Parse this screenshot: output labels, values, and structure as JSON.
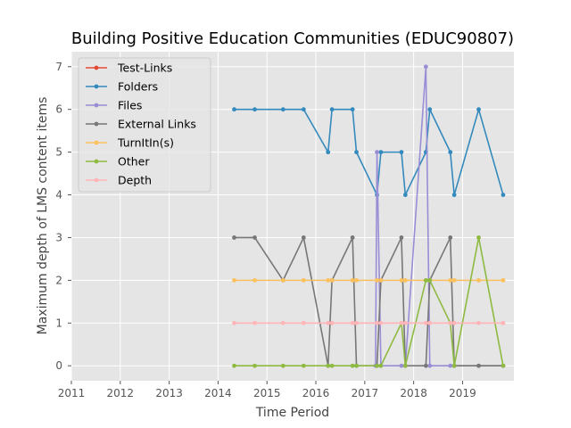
{
  "chart_data": {
    "type": "line",
    "title": "Building Positive Education Communities (EDUC90807)",
    "xlabel": "Time Period",
    "ylabel": "Maximum depth of LMS content items",
    "xlim": [
      2011.0,
      2020.05
    ],
    "ylim": [
      -0.35,
      7.35
    ],
    "xticks": [
      "2011",
      "2012",
      "2013",
      "2014",
      "2015",
      "2016",
      "2017",
      "2018",
      "2019"
    ],
    "yticks": [
      "0",
      "1",
      "2",
      "3",
      "4",
      "5",
      "6",
      "7"
    ],
    "grid": true,
    "legend_position": "upper-left",
    "series": [
      {
        "name": "Test-Links",
        "color": "#e24a33",
        "points": []
      },
      {
        "name": "Folders",
        "color": "#348abd",
        "points": [
          [
            2014.33,
            6
          ],
          [
            2014.75,
            6
          ],
          [
            2015.33,
            6
          ],
          [
            2015.75,
            6
          ],
          [
            2016.25,
            5
          ],
          [
            2016.33,
            6
          ],
          [
            2016.75,
            6
          ],
          [
            2016.83,
            5
          ],
          [
            2017.25,
            4
          ],
          [
            2017.33,
            5
          ],
          [
            2017.75,
            5
          ],
          [
            2017.83,
            4
          ],
          [
            2018.25,
            5
          ],
          [
            2018.33,
            6
          ],
          [
            2018.75,
            5
          ],
          [
            2018.83,
            4
          ],
          [
            2019.33,
            6
          ],
          [
            2019.83,
            4
          ]
        ]
      },
      {
        "name": "Files",
        "color": "#988ed5",
        "points": [
          [
            2017.22,
            0
          ],
          [
            2017.25,
            5
          ],
          [
            2017.33,
            0
          ],
          [
            2017.75,
            0
          ],
          [
            2017.83,
            0
          ],
          [
            2018.25,
            7
          ],
          [
            2018.33,
            0
          ],
          [
            2018.75,
            0
          ],
          [
            2018.83,
            0
          ],
          [
            2019.33,
            0
          ],
          [
            2019.83,
            0
          ]
        ]
      },
      {
        "name": "External Links",
        "color": "#777777",
        "points": [
          [
            2014.33,
            3
          ],
          [
            2014.75,
            3
          ],
          [
            2015.33,
            2
          ],
          [
            2015.75,
            3
          ],
          [
            2016.25,
            0
          ],
          [
            2016.33,
            2
          ],
          [
            2016.75,
            3
          ],
          [
            2016.83,
            0
          ],
          [
            2017.25,
            0
          ],
          [
            2017.33,
            2
          ],
          [
            2017.75,
            3
          ],
          [
            2017.83,
            0
          ],
          [
            2018.25,
            0
          ],
          [
            2018.33,
            2
          ],
          [
            2018.75,
            3
          ],
          [
            2018.83,
            0
          ],
          [
            2019.33,
            0
          ],
          [
            2019.83,
            0
          ]
        ]
      },
      {
        "name": "TurnItIn(s)",
        "color": "#fbc15e",
        "points": [
          [
            2014.33,
            2
          ],
          [
            2014.75,
            2
          ],
          [
            2015.33,
            2
          ],
          [
            2015.75,
            2
          ],
          [
            2016.25,
            2
          ],
          [
            2016.33,
            2
          ],
          [
            2016.75,
            2
          ],
          [
            2016.83,
            2
          ],
          [
            2017.25,
            2
          ],
          [
            2017.33,
            2
          ],
          [
            2017.75,
            2
          ],
          [
            2017.83,
            2
          ],
          [
            2018.25,
            2
          ],
          [
            2018.33,
            2
          ],
          [
            2018.75,
            2
          ],
          [
            2018.83,
            2
          ],
          [
            2019.33,
            2
          ],
          [
            2019.83,
            2
          ]
        ]
      },
      {
        "name": "Other",
        "color": "#8eba42",
        "points": [
          [
            2014.33,
            0
          ],
          [
            2014.75,
            0
          ],
          [
            2015.33,
            0
          ],
          [
            2015.75,
            0
          ],
          [
            2016.25,
            0
          ],
          [
            2016.33,
            0
          ],
          [
            2016.75,
            0
          ],
          [
            2016.83,
            0
          ],
          [
            2017.25,
            0
          ],
          [
            2017.33,
            0
          ],
          [
            2017.75,
            1
          ],
          [
            2017.83,
            0
          ],
          [
            2018.25,
            2
          ],
          [
            2018.33,
            2
          ],
          [
            2018.75,
            1
          ],
          [
            2018.83,
            0
          ],
          [
            2019.33,
            3
          ],
          [
            2019.83,
            0
          ]
        ]
      },
      {
        "name": "Depth",
        "color": "#ffb5b8",
        "points": [
          [
            2014.33,
            1
          ],
          [
            2014.75,
            1
          ],
          [
            2015.33,
            1
          ],
          [
            2015.75,
            1
          ],
          [
            2016.25,
            1
          ],
          [
            2016.33,
            1
          ],
          [
            2016.75,
            1
          ],
          [
            2016.83,
            1
          ],
          [
            2017.25,
            1
          ],
          [
            2017.33,
            1
          ],
          [
            2017.75,
            1
          ],
          [
            2017.83,
            1
          ],
          [
            2018.25,
            1
          ],
          [
            2018.33,
            1
          ],
          [
            2018.75,
            1
          ],
          [
            2018.83,
            1
          ],
          [
            2019.33,
            1
          ],
          [
            2019.83,
            1
          ]
        ]
      }
    ]
  }
}
